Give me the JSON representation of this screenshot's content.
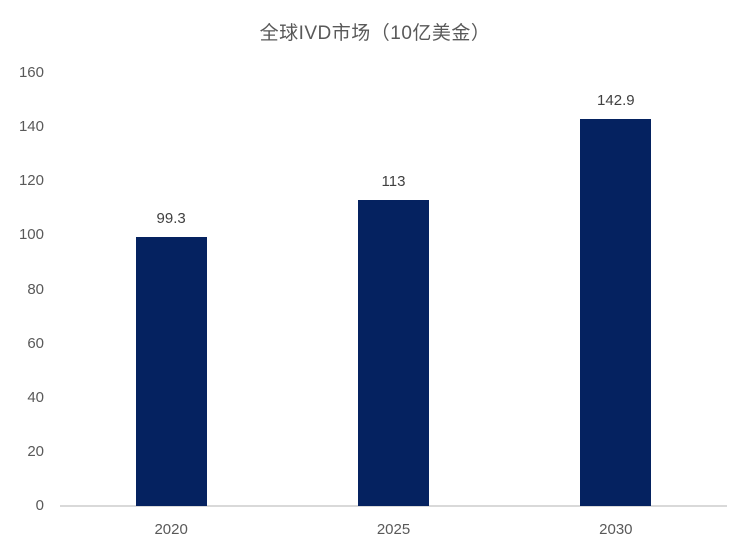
{
  "chart_data": {
    "type": "bar",
    "title": "全球IVD市场（10亿美金）",
    "categories": [
      "2020",
      "2025",
      "2030"
    ],
    "values": [
      99.3,
      113,
      142.9
    ],
    "value_labels": [
      "99.3",
      "113",
      "142.9"
    ],
    "xlabel": "",
    "ylabel": "",
    "ylim": [
      0,
      160
    ],
    "ytick_step": 20,
    "grid": false,
    "legend": false,
    "bar_color": "#052260",
    "axis_line_color": "#d9d9d9",
    "title_color": "#595959",
    "tick_label_color": "#595959",
    "value_label_color": "#404040"
  }
}
